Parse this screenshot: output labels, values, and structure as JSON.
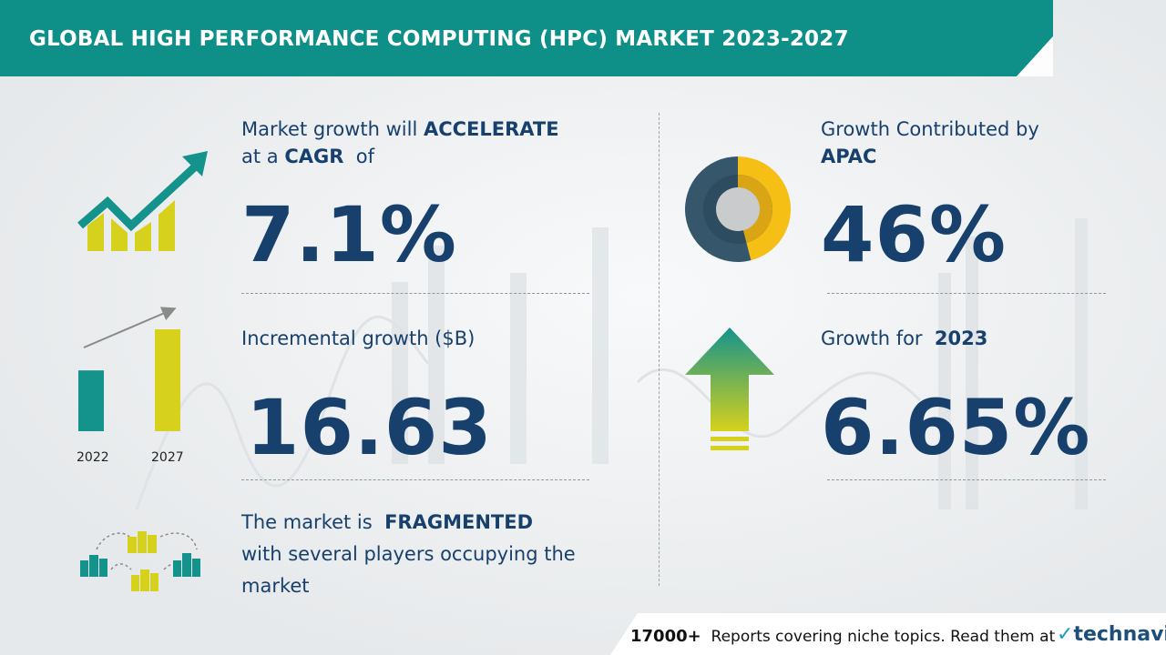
{
  "header": {
    "title": "GLOBAL HIGH PERFORMANCE COMPUTING (HPC) MARKET 2023-2027"
  },
  "cagr": {
    "line1_prefix": "Market growth will",
    "line1_bold": "ACCELERATE",
    "line2_prefix": "at a",
    "line2_bold": "CAGR",
    "line2_suffix": "of",
    "value": "7.1%"
  },
  "incremental": {
    "label": "Incremental growth ($B)",
    "value": "16.63"
  },
  "fragmented": {
    "line1_prefix": "The market is",
    "line1_bold": "FRAGMENTED",
    "line2": "with several players occupying the",
    "line3": "market"
  },
  "region": {
    "label": "Growth Contributed by",
    "region": "APAC",
    "value": "46%"
  },
  "yoy": {
    "label": "Growth for",
    "year": "2023",
    "value": "6.65%"
  },
  "footer": {
    "count": "17000+",
    "text": "Reports covering niche topics. Read them at",
    "brand": "technavio"
  },
  "colors": {
    "banner": "#0e8f88",
    "navy": "#17406d",
    "teal": "#14938c",
    "yellow_green": "#d6d11c",
    "donut_dark": "#35566b",
    "donut_yellow": "#f5bf16"
  },
  "chart_data": [
    {
      "type": "bar",
      "categories": [
        "2022",
        "2027"
      ],
      "values": [
        0.63,
        1.0
      ],
      "title": "",
      "xlabel": "",
      "ylabel": ""
    },
    {
      "type": "pie",
      "categories": [
        "APAC",
        "Rest"
      ],
      "values": [
        46,
        54
      ],
      "title": ""
    }
  ]
}
